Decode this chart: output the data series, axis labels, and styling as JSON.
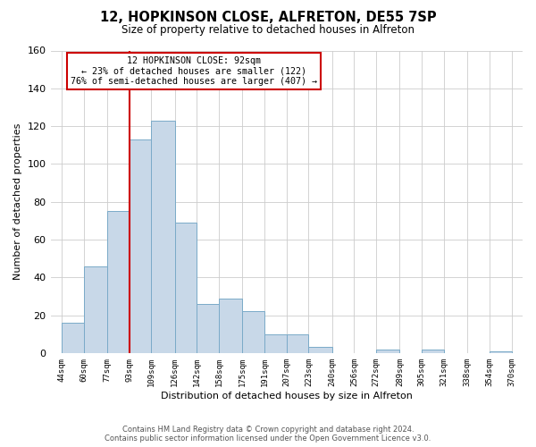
{
  "title": "12, HOPKINSON CLOSE, ALFRETON, DE55 7SP",
  "subtitle": "Size of property relative to detached houses in Alfreton",
  "xlabel": "Distribution of detached houses by size in Alfreton",
  "ylabel": "Number of detached properties",
  "footer_line1": "Contains HM Land Registry data © Crown copyright and database right 2024.",
  "footer_line2": "Contains public sector information licensed under the Open Government Licence v3.0.",
  "bar_edges": [
    44,
    60,
    77,
    93,
    109,
    126,
    142,
    158,
    175,
    191,
    207,
    223,
    240,
    256,
    272,
    289,
    305,
    321,
    338,
    354,
    370
  ],
  "bar_heights": [
    16,
    46,
    75,
    113,
    123,
    69,
    26,
    29,
    22,
    10,
    10,
    3,
    0,
    0,
    2,
    0,
    2,
    0,
    0,
    1
  ],
  "bar_color": "#c8d8e8",
  "bar_edgecolor": "#7aaac8",
  "vline_x": 93,
  "vline_color": "#cc0000",
  "annotation_title": "12 HOPKINSON CLOSE: 92sqm",
  "annotation_line1": "← 23% of detached houses are smaller (122)",
  "annotation_line2": "76% of semi-detached houses are larger (407) →",
  "annotation_box_color": "#ffffff",
  "annotation_box_edgecolor": "#cc0000",
  "xlim_min": 36,
  "xlim_max": 378,
  "ylim": [
    0,
    160
  ],
  "yticks": [
    0,
    20,
    40,
    60,
    80,
    100,
    120,
    140,
    160
  ],
  "xtick_labels": [
    "44sqm",
    "60sqm",
    "77sqm",
    "93sqm",
    "109sqm",
    "126sqm",
    "142sqm",
    "158sqm",
    "175sqm",
    "191sqm",
    "207sqm",
    "223sqm",
    "240sqm",
    "256sqm",
    "272sqm",
    "289sqm",
    "305sqm",
    "321sqm",
    "338sqm",
    "354sqm",
    "370sqm"
  ],
  "xtick_positions": [
    44,
    60,
    77,
    93,
    109,
    126,
    142,
    158,
    175,
    191,
    207,
    223,
    240,
    256,
    272,
    289,
    305,
    321,
    338,
    354,
    370
  ],
  "grid_color": "#cccccc",
  "bg_color": "#ffffff"
}
